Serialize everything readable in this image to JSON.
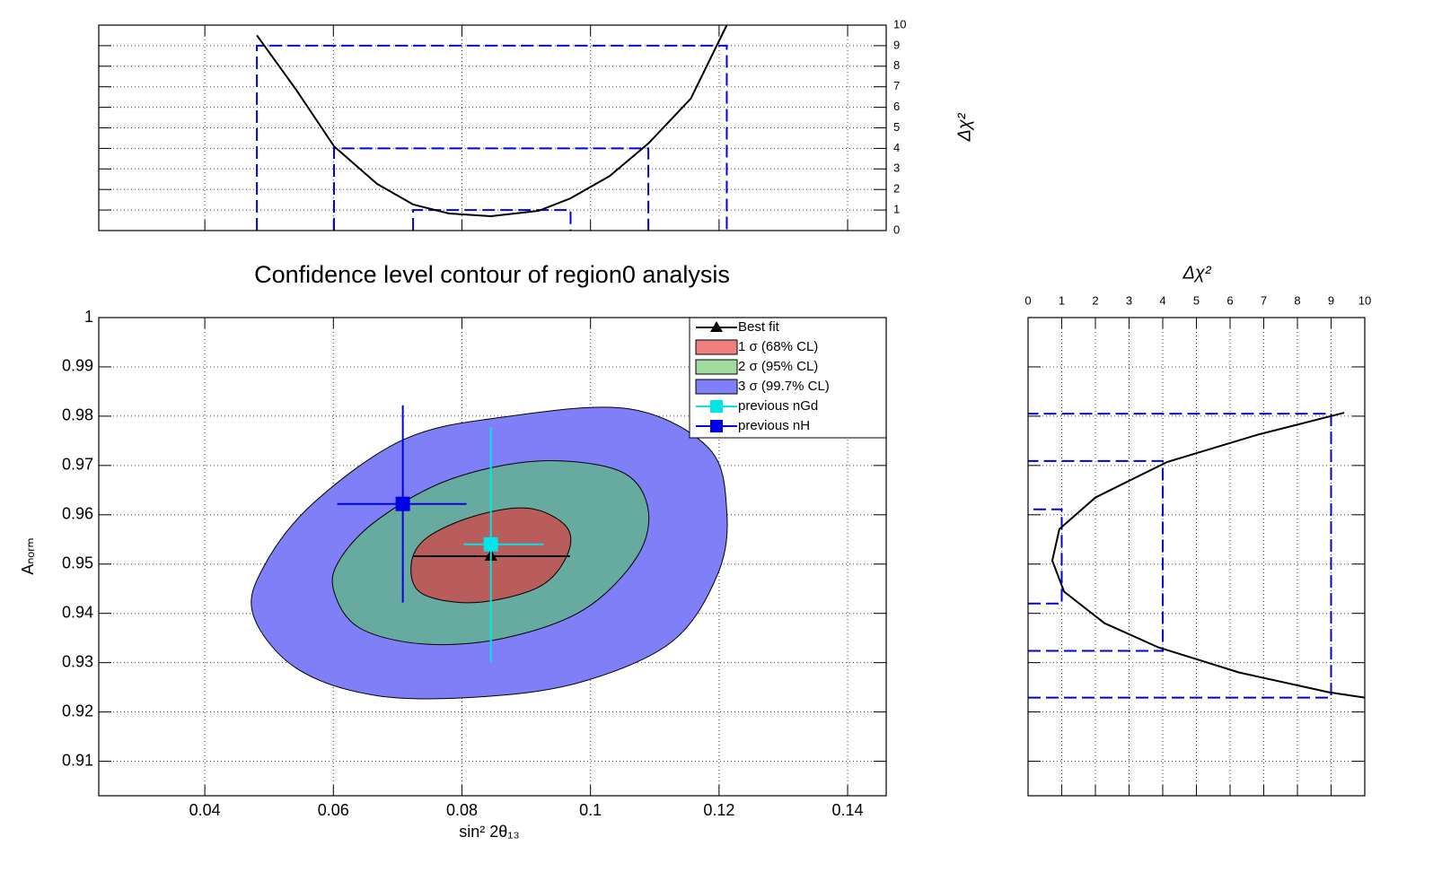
{
  "chart_data": [
    {
      "type": "contour",
      "title": "Confidence level contour of region0 analysis",
      "xlabel": "sin² 2θ₁₃",
      "ylabel": "Aₙₒᵣₘ",
      "xlim": [
        0.0235,
        0.146
      ],
      "ylim": [
        0.903,
        1.0
      ],
      "xticks": [
        0.04,
        0.06,
        0.08,
        0.1,
        0.12,
        0.14
      ],
      "yticks": [
        0.91,
        0.92,
        0.93,
        0.94,
        0.95,
        0.96,
        0.97,
        0.98,
        0.99,
        1
      ],
      "grid": true,
      "legend": "upper right",
      "contours": [
        {
          "name": "1 σ (68% CL)",
          "color": "#f08080",
          "fill": "#b85c5c",
          "x": [
            0.0721,
            0.0738,
            0.0821,
            0.0919,
            0.0963,
            0.0963,
            0.0905,
            0.0821,
            0.0745
          ],
          "y": [
            0.9498,
            0.944,
            0.9422,
            0.9453,
            0.9516,
            0.9575,
            0.9613,
            0.9598,
            0.9553
          ]
        },
        {
          "name": "2 σ (95% CL)",
          "color": "#a0dca0",
          "fill": "#66aaa0",
          "x": [
            0.0601,
            0.064,
            0.0738,
            0.0863,
            0.0989,
            0.1073,
            0.1089,
            0.1045,
            0.0919,
            0.078,
            0.0668,
            0.0609
          ],
          "y": [
            0.9444,
            0.9371,
            0.9338,
            0.9349,
            0.9407,
            0.9516,
            0.9616,
            0.9689,
            0.9709,
            0.9671,
            0.9589,
            0.9507
          ]
        },
        {
          "name": "3 σ (99.7% CL)",
          "color": "#7f7ff7",
          "fill": "#7f7ff7",
          "x": [
            0.0475,
            0.0542,
            0.0668,
            0.0835,
            0.0989,
            0.1128,
            0.1198,
            0.1212,
            0.1184,
            0.1059,
            0.0863,
            0.071,
            0.057,
            0.0493
          ],
          "y": [
            0.9398,
            0.9289,
            0.9233,
            0.9231,
            0.9262,
            0.9344,
            0.948,
            0.9607,
            0.9735,
            0.9815,
            0.9798,
            0.9753,
            0.9625,
            0.9498
          ]
        }
      ],
      "points": [
        {
          "name": "Best fit",
          "color": "#000000",
          "marker": "triangle",
          "x": 0.0845,
          "y": 0.9516,
          "x_range": [
            0.0724,
            0.0968
          ]
        },
        {
          "name": "previous nGd",
          "color": "#00e5e5",
          "marker": "square",
          "x": 0.0845,
          "y": 0.954,
          "x_range": [
            0.0803,
            0.0927
          ],
          "y_range": [
            0.9302,
            0.9778
          ]
        },
        {
          "name": "previous nH",
          "color": "#0000e5",
          "marker": "square",
          "x": 0.0708,
          "y": 0.9622,
          "x_range": [
            0.0606,
            0.0807
          ],
          "y_range": [
            0.9422,
            0.9822
          ]
        }
      ]
    },
    {
      "type": "line",
      "ylabel": "Δχ²",
      "xlim": [
        0.0235,
        0.146
      ],
      "ylim": [
        0,
        10
      ],
      "xticks": [
        0.04,
        0.06,
        0.08,
        0.1,
        0.12,
        0.14
      ],
      "yticks": [
        0,
        1,
        2,
        3,
        4,
        5,
        6,
        7,
        8,
        9,
        10
      ],
      "grid": true,
      "series": [
        {
          "color": "#000000",
          "x": [
            0.0481,
            0.0542,
            0.0601,
            0.0668,
            0.0724,
            0.078,
            0.0845,
            0.0919,
            0.0969,
            0.103,
            0.109,
            0.1156,
            0.1212
          ],
          "y": [
            9.5,
            6.86,
            4.1,
            2.27,
            1.27,
            0.83,
            0.7,
            0.96,
            1.57,
            2.66,
            4.24,
            6.42,
            10
          ]
        }
      ],
      "interval_color": "#0000e5",
      "intervals": [
        {
          "level": 1,
          "x": [
            0.0724,
            0.0969
          ]
        },
        {
          "level": 4,
          "x": [
            0.0601,
            0.109
          ]
        },
        {
          "level": 9,
          "x": [
            0.0481,
            0.1212
          ]
        }
      ]
    },
    {
      "type": "line",
      "xlabel": "Δχ²",
      "xlim": [
        0,
        10
      ],
      "ylim": [
        0.903,
        1.0
      ],
      "xticks": [
        0,
        1,
        2,
        3,
        4,
        5,
        6,
        7,
        8,
        9,
        10
      ],
      "yticks": [
        0.91,
        0.92,
        0.93,
        0.94,
        0.95,
        0.96,
        0.97,
        0.98,
        0.99,
        1
      ],
      "grid": true,
      "series": [
        {
          "color": "#000000",
          "x": [
            9.39,
            6.8,
            4.13,
            2.0,
            0.93,
            0.72,
            1.07,
            2.27,
            3.87,
            6.27,
            8.93,
            10
          ],
          "y": [
            0.9807,
            0.9762,
            0.9707,
            0.9635,
            0.9571,
            0.9507,
            0.9444,
            0.938,
            0.9331,
            0.928,
            0.924,
            0.9229
          ]
        }
      ],
      "interval_color": "#0000e5",
      "intervals": [
        {
          "level": 1,
          "y": [
            0.942,
            0.9611
          ]
        },
        {
          "level": 4,
          "y": [
            0.9324,
            0.9709
          ]
        },
        {
          "level": 9,
          "y": [
            0.9229,
            0.9805
          ]
        }
      ]
    }
  ]
}
